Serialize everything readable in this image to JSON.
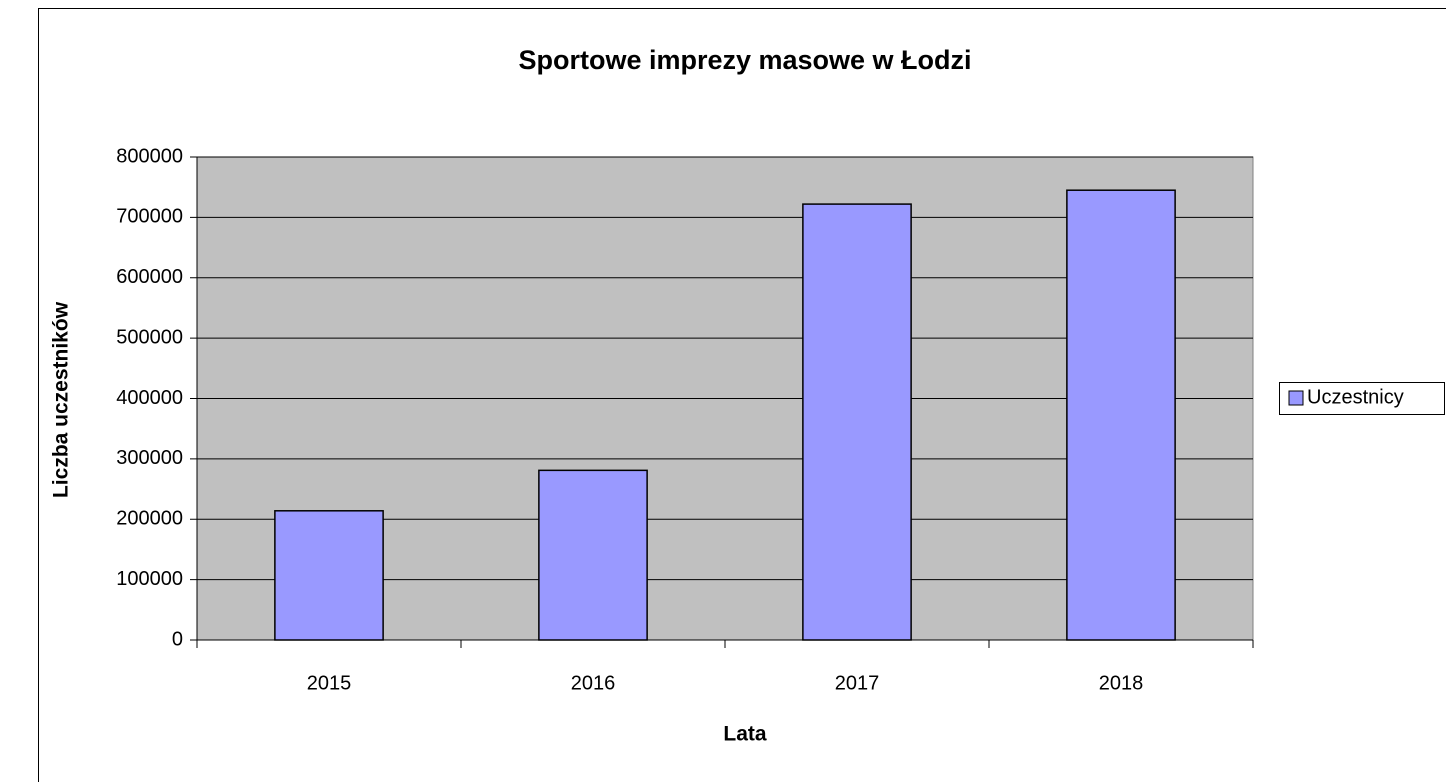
{
  "chart_data": {
    "type": "bar",
    "title": "Sportowe imprezy masowe w Łodzi",
    "x_label": "Lata",
    "y_label": "Liczba uczestników",
    "categories": [
      "2015",
      "2016",
      "2017",
      "2018"
    ],
    "series": [
      {
        "name": "Uczestnicy",
        "color": "#9999ff",
        "values": [
          214000,
          281000,
          722000,
          745000
        ]
      }
    ],
    "ylim": [
      0,
      800000
    ],
    "yticks": [
      0,
      100000,
      200000,
      300000,
      400000,
      500000,
      600000,
      700000,
      800000
    ],
    "grid": true,
    "legend": "right",
    "plot_background": "#c0c0c0"
  }
}
